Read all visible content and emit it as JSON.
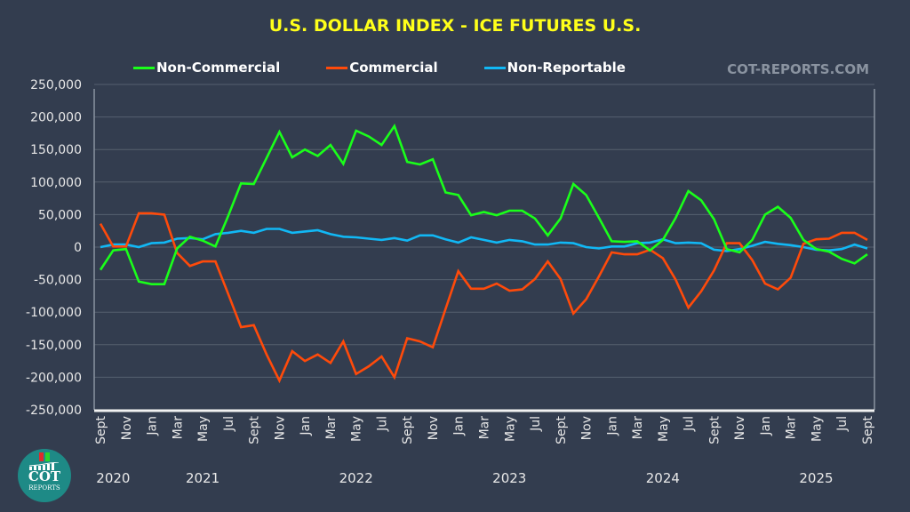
{
  "watermark": "COT-REPORTS.COM",
  "logo": {
    "text": "COT",
    "subtext": "REPORTS"
  },
  "chart_data": {
    "type": "line",
    "title": "U.S. DOLLAR INDEX - ICE FUTURES U.S.",
    "xlabel": "",
    "ylabel": "",
    "ylim": [
      -250000,
      250000
    ],
    "yticks": [
      250000,
      200000,
      150000,
      100000,
      50000,
      0,
      -50000,
      -100000,
      -150000,
      -200000,
      -250000
    ],
    "ytick_labels": [
      "250,000",
      "200,000",
      "150,000",
      "100,000",
      "50,000",
      "0",
      "-50,000",
      "-100,000",
      "-150,000",
      "-200,000",
      "-250,000"
    ],
    "grid": true,
    "legend_position": "top-left",
    "x_tick_labels": [
      "Sept",
      "Nov",
      "Jan",
      "Mar",
      "May",
      "Jul",
      "Sept",
      "Nov",
      "Jan",
      "Mar",
      "May",
      "Jul",
      "Sept",
      "Nov",
      "Jan",
      "Mar",
      "May",
      "Jul",
      "Sept",
      "Nov",
      "Jan",
      "Mar",
      "May",
      "Jul",
      "Sept",
      "Nov",
      "Jan",
      "Mar",
      "May",
      "Jul",
      "Sept"
    ],
    "year_labels": [
      {
        "label": "2020",
        "month_index": 1
      },
      {
        "label": "2021",
        "month_index": 8
      },
      {
        "label": "2022",
        "month_index": 20
      },
      {
        "label": "2023",
        "month_index": 32
      },
      {
        "label": "2024",
        "month_index": 44
      },
      {
        "label": "2025",
        "month_index": 56
      }
    ],
    "x_start": "2020-09",
    "x_end": "2025-09",
    "x_interval": "monthly",
    "series": [
      {
        "name": "Non-Commercial",
        "color": "#1aff1a",
        "values": [
          -35000,
          -5000,
          -3000,
          -53000,
          -57000,
          -57000,
          -2000,
          16000,
          10000,
          1000,
          48000,
          98000,
          97000,
          137000,
          177000,
          138000,
          150000,
          140000,
          157000,
          128000,
          179000,
          170000,
          157000,
          186000,
          131000,
          127000,
          135000,
          84000,
          80000,
          49000,
          54000,
          49000,
          56000,
          56000,
          44000,
          18000,
          44000,
          97000,
          80000,
          45000,
          9000,
          8000,
          9000,
          -5000,
          11000,
          45000,
          86000,
          72000,
          43000,
          -3000,
          -8000,
          11000,
          50000,
          62000,
          45000,
          11000,
          -3000,
          -7000,
          -18000,
          -25000,
          -11000
        ]
      },
      {
        "name": "Commercial",
        "color": "#ff4a0a",
        "values": [
          36000,
          1000,
          1000,
          52000,
          52000,
          50000,
          -9000,
          -29000,
          -22000,
          -22000,
          -72000,
          -123000,
          -120000,
          -165000,
          -205000,
          -160000,
          -175000,
          -165000,
          -178000,
          -145000,
          -195000,
          -183000,
          -168000,
          -200000,
          -140000,
          -145000,
          -154000,
          -95000,
          -37000,
          -64000,
          -64000,
          -56000,
          -67000,
          -65000,
          -49000,
          -22000,
          -49000,
          -102000,
          -80000,
          -45000,
          -8000,
          -11000,
          -11000,
          -4000,
          -17000,
          -50000,
          -93000,
          -68000,
          -36000,
          6000,
          6000,
          -20000,
          -56000,
          -65000,
          -47000,
          5000,
          12000,
          13000,
          22000,
          22000,
          11000
        ]
      },
      {
        "name": "Non-Reportable",
        "color": "#11b8f5",
        "values": [
          0,
          4000,
          4000,
          0,
          6000,
          7000,
          13000,
          14000,
          12000,
          20000,
          22000,
          25000,
          22000,
          28000,
          28000,
          22000,
          24000,
          26000,
          20000,
          16000,
          15000,
          13000,
          11000,
          14000,
          10000,
          18000,
          18000,
          12000,
          7000,
          15000,
          11000,
          7000,
          11000,
          9000,
          4000,
          4000,
          7000,
          6000,
          0,
          -2000,
          1000,
          1000,
          6000,
          7000,
          12000,
          6000,
          7000,
          6000,
          -4000,
          -6000,
          -3000,
          2000,
          8000,
          5000,
          3000,
          0,
          -4000,
          -5000,
          -3000,
          4000,
          -2000
        ]
      }
    ]
  }
}
